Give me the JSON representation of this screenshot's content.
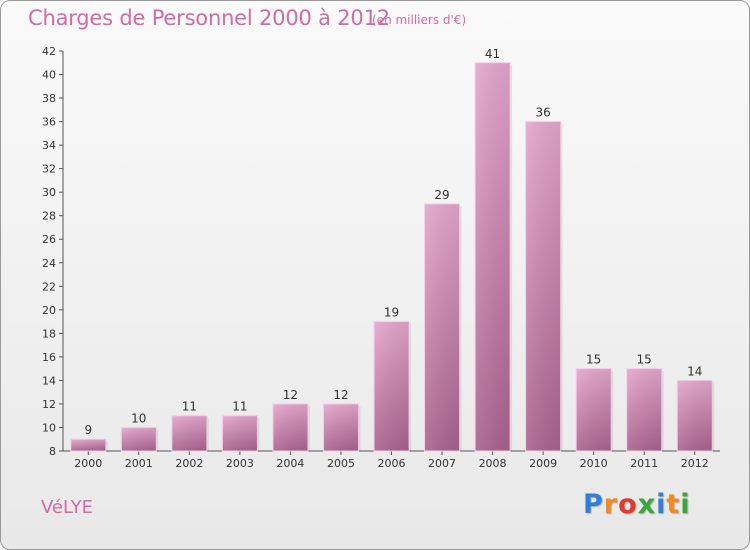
{
  "header": {
    "title": "Charges de Personnel 2000 à 2012",
    "subtitle": "(en milliers d'€)"
  },
  "footer": {
    "commune": "VéLYE",
    "logo": {
      "letters": [
        "P",
        "r",
        "o",
        "x",
        "i",
        "t",
        "i"
      ],
      "colors": [
        "#2f7fd4",
        "#f08a1c",
        "#e43a2e",
        "#3aa63a",
        "#2f7fd4",
        "#f08a1c",
        "#3aa63a"
      ]
    }
  },
  "chart_data": {
    "type": "bar",
    "title": "Charges de Personnel 2000 à 2012",
    "subtitle": "(en milliers d'€)",
    "categories": [
      "2000",
      "2001",
      "2002",
      "2003",
      "2004",
      "2005",
      "2006",
      "2007",
      "2008",
      "2009",
      "2010",
      "2011",
      "2012"
    ],
    "values": [
      9,
      10,
      11,
      11,
      12,
      12,
      19,
      29,
      41,
      36,
      15,
      15,
      14
    ],
    "ylim": [
      8,
      42
    ],
    "yticks": [
      8,
      10,
      12,
      14,
      16,
      18,
      20,
      22,
      24,
      26,
      28,
      30,
      32,
      34,
      36,
      38,
      40,
      42
    ],
    "grid": false,
    "bar_color": "#c873a6"
  }
}
